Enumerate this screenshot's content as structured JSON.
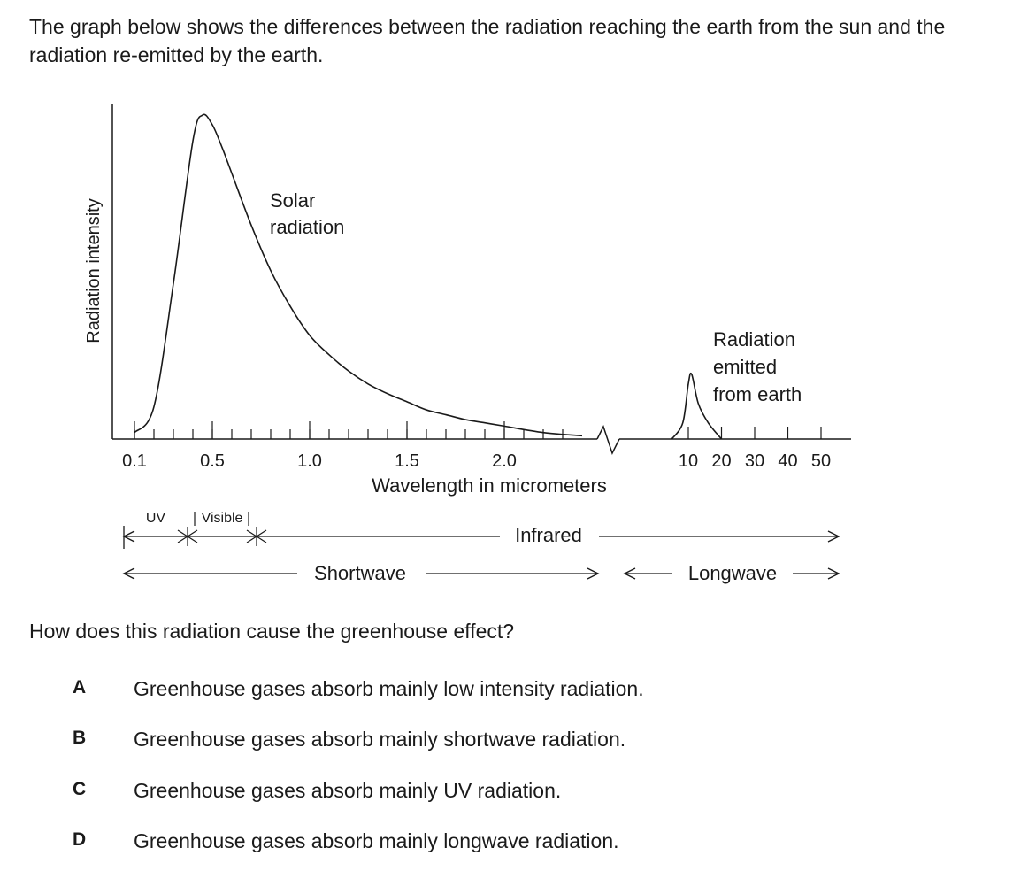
{
  "intro": "The graph below shows the differences between the radiation reaching the earth from the sun and the radiation re-emitted by the earth.",
  "chart_data": {
    "type": "line",
    "title": "",
    "xlabel": "Wavelength in micrometers",
    "ylabel": "Radiation intensity",
    "x_scale": "broken",
    "short_ticks": [
      "0.1",
      "0.5",
      "1.0",
      "1.5",
      "2.0"
    ],
    "long_ticks": [
      "10",
      "20",
      "30",
      "40",
      "50"
    ],
    "grid": false,
    "series": [
      {
        "name": "Solar\nradiation",
        "x": [
          0.1,
          0.2,
          0.3,
          0.4,
          0.45,
          0.5,
          0.55,
          0.6,
          0.7,
          0.8,
          0.9,
          1.0,
          1.1,
          1.2,
          1.3,
          1.4,
          1.5,
          1.6,
          1.7,
          1.8,
          1.9,
          2.0,
          2.2,
          2.4
        ],
        "y": [
          0.02,
          0.1,
          0.48,
          0.92,
          1.0,
          0.97,
          0.9,
          0.82,
          0.66,
          0.52,
          0.41,
          0.32,
          0.26,
          0.21,
          0.17,
          0.14,
          0.115,
          0.09,
          0.075,
          0.06,
          0.05,
          0.04,
          0.02,
          0.01
        ]
      },
      {
        "name": "Radiation\nemitted\nfrom earth",
        "x": [
          7,
          9,
          10,
          11,
          13,
          16,
          20
        ],
        "y": [
          0.0,
          0.05,
          0.17,
          0.2,
          0.11,
          0.05,
          0.0
        ]
      }
    ],
    "bands": [
      {
        "label": "UV"
      },
      {
        "label": "Visible"
      },
      {
        "label": "Infrared"
      },
      {
        "label": "Shortwave"
      },
      {
        "label": "Longwave"
      }
    ]
  },
  "question": "How does this radiation cause the greenhouse effect?",
  "options": [
    {
      "letter": "A",
      "text": "Greenhouse gases absorb mainly low intensity radiation."
    },
    {
      "letter": "B",
      "text": "Greenhouse gases absorb mainly shortwave radiation."
    },
    {
      "letter": "C",
      "text": "Greenhouse gases absorb mainly UV radiation."
    },
    {
      "letter": "D",
      "text": "Greenhouse gases absorb mainly longwave radiation."
    }
  ]
}
